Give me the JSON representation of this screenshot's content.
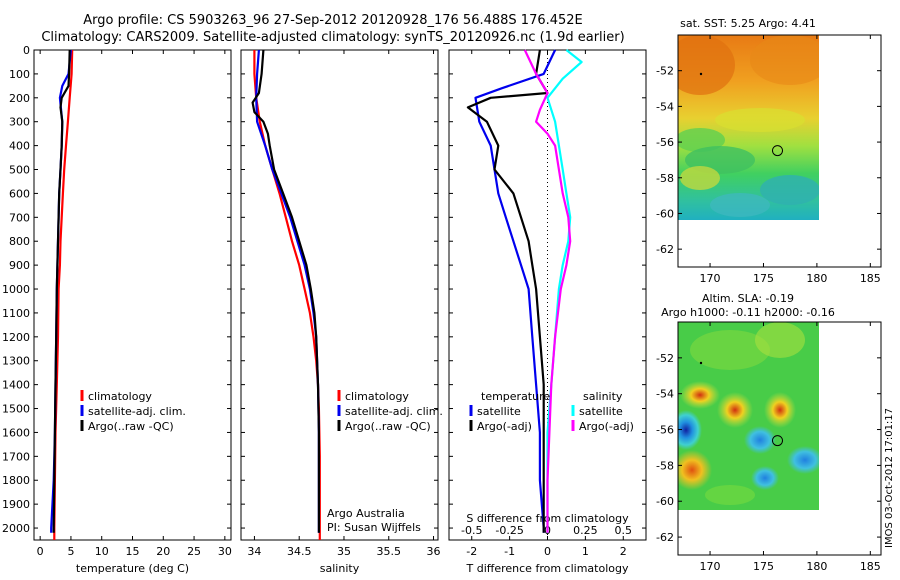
{
  "title_line1": "Argo profile: CS 5903263_96 27-Sep-2012 20120928_176 56.488S 176.452E",
  "title_line2": "Climatology: CARS2009. Satellite-adjusted climatology: synTS_20120926.nc (1.9d earlier)",
  "sidebar_stamp": "IMOS 03-Oct-2012 17:01:17",
  "colors": {
    "clim": "#ff0000",
    "sat": "#0000ee",
    "argo": "#000000",
    "sat_s": "#00ffff",
    "argo_s": "#ff00ff"
  },
  "chart_data": [
    {
      "type": "line",
      "xlabel": "temperature (deg C)",
      "xlim": [
        -1,
        31
      ],
      "ylim": [
        0,
        2050
      ],
      "xticks": [
        0,
        5,
        10,
        15,
        20,
        25,
        30
      ],
      "yticks": [
        0,
        100,
        200,
        300,
        400,
        500,
        600,
        700,
        800,
        900,
        1000,
        1100,
        1200,
        1300,
        1400,
        1500,
        1600,
        1700,
        1800,
        1900,
        2000
      ],
      "legend": [
        "climatology",
        "satellite-adj. clim.",
        "Argo(..raw -QC)"
      ],
      "series": [
        {
          "name": "climatology",
          "color": "clim",
          "points": [
            [
              5.2,
              0
            ],
            [
              5.1,
              100
            ],
            [
              4.8,
              200
            ],
            [
              4.5,
              300
            ],
            [
              4.2,
              400
            ],
            [
              3.9,
              500
            ],
            [
              3.7,
              600
            ],
            [
              3.5,
              700
            ],
            [
              3.3,
              800
            ],
            [
              3.2,
              900
            ],
            [
              3.0,
              1000
            ],
            [
              2.9,
              1200
            ],
            [
              2.7,
              1400
            ],
            [
              2.5,
              1600
            ],
            [
              2.4,
              1800
            ],
            [
              2.3,
              2000
            ],
            [
              2.3,
              2050
            ]
          ]
        },
        {
          "name": "satellite-adj. clim.",
          "color": "sat",
          "points": [
            [
              5.0,
              0
            ],
            [
              4.6,
              100
            ],
            [
              3.6,
              150
            ],
            [
              3.2,
              200
            ],
            [
              3.4,
              250
            ],
            [
              3.6,
              300
            ],
            [
              3.5,
              400
            ],
            [
              3.3,
              500
            ],
            [
              3.1,
              600
            ],
            [
              3.0,
              700
            ],
            [
              2.9,
              800
            ],
            [
              2.8,
              900
            ],
            [
              2.7,
              1000
            ],
            [
              2.6,
              1200
            ],
            [
              2.5,
              1400
            ],
            [
              2.4,
              1600
            ],
            [
              2.2,
              1800
            ],
            [
              1.8,
              2000
            ],
            [
              1.8,
              2020
            ]
          ]
        },
        {
          "name": "Argo(..raw -QC)",
          "color": "argo",
          "points": [
            [
              4.8,
              0
            ],
            [
              4.7,
              100
            ],
            [
              4.6,
              150
            ],
            [
              3.5,
              200
            ],
            [
              3.3,
              240
            ],
            [
              3.6,
              300
            ],
            [
              3.5,
              400
            ],
            [
              3.3,
              500
            ],
            [
              3.1,
              600
            ],
            [
              3.0,
              700
            ],
            [
              2.9,
              800
            ],
            [
              2.8,
              900
            ],
            [
              2.7,
              1000
            ],
            [
              2.6,
              1200
            ],
            [
              2.5,
              1400
            ],
            [
              2.4,
              1600
            ],
            [
              2.3,
              1800
            ],
            [
              2.2,
              2000
            ],
            [
              2.2,
              2020
            ]
          ]
        }
      ]
    },
    {
      "type": "line",
      "xlabel": "salinity",
      "xlim": [
        33.85,
        36.05
      ],
      "ylim": [
        0,
        2050
      ],
      "xticks": [
        34,
        34.5,
        35,
        35.5,
        36
      ],
      "yticks": [
        0,
        100,
        200,
        300,
        400,
        500,
        600,
        700,
        800,
        900,
        1000,
        1100,
        1200,
        1300,
        1400,
        1500,
        1600,
        1700,
        1800,
        1900,
        2000
      ],
      "legend": [
        "climatology",
        "satellite-adj. clim.",
        "Argo(..raw -QC)"
      ],
      "annotations": [
        "Argo Australia",
        "PI: Susan Wijffels"
      ],
      "series": [
        {
          "name": "climatology",
          "color": "clim",
          "points": [
            [
              34.0,
              0
            ],
            [
              34.0,
              100
            ],
            [
              34.02,
              200
            ],
            [
              34.06,
              300
            ],
            [
              34.12,
              400
            ],
            [
              34.2,
              500
            ],
            [
              34.28,
              600
            ],
            [
              34.35,
              700
            ],
            [
              34.42,
              800
            ],
            [
              34.5,
              900
            ],
            [
              34.56,
              1000
            ],
            [
              34.62,
              1100
            ],
            [
              34.66,
              1200
            ],
            [
              34.69,
              1300
            ],
            [
              34.71,
              1400
            ],
            [
              34.72,
              1500
            ],
            [
              34.73,
              1700
            ],
            [
              34.73,
              1900
            ],
            [
              34.73,
              2050
            ]
          ]
        },
        {
          "name": "satellite-adj. clim.",
          "color": "sat",
          "points": [
            [
              34.05,
              0
            ],
            [
              34.03,
              100
            ],
            [
              34.02,
              200
            ],
            [
              34.03,
              300
            ],
            [
              34.12,
              400
            ],
            [
              34.2,
              500
            ],
            [
              34.3,
              600
            ],
            [
              34.4,
              700
            ],
            [
              34.48,
              800
            ],
            [
              34.56,
              900
            ],
            [
              34.62,
              1000
            ],
            [
              34.66,
              1100
            ],
            [
              34.69,
              1200
            ],
            [
              34.7,
              1300
            ],
            [
              34.71,
              1400
            ],
            [
              34.72,
              1600
            ],
            [
              34.72,
              1800
            ],
            [
              34.72,
              2000
            ],
            [
              34.72,
              2020
            ]
          ]
        },
        {
          "name": "Argo(..raw -QC)",
          "color": "argo",
          "points": [
            [
              34.1,
              0
            ],
            [
              34.08,
              100
            ],
            [
              34.05,
              180
            ],
            [
              33.98,
              220
            ],
            [
              34.0,
              260
            ],
            [
              34.1,
              300
            ],
            [
              34.15,
              350
            ],
            [
              34.17,
              400
            ],
            [
              34.22,
              500
            ],
            [
              34.32,
              600
            ],
            [
              34.42,
              700
            ],
            [
              34.5,
              800
            ],
            [
              34.58,
              900
            ],
            [
              34.63,
              1000
            ],
            [
              34.67,
              1100
            ],
            [
              34.69,
              1200
            ],
            [
              34.7,
              1300
            ],
            [
              34.71,
              1400
            ],
            [
              34.72,
              1600
            ],
            [
              34.72,
              1800
            ],
            [
              34.72,
              2000
            ],
            [
              34.72,
              2020
            ]
          ]
        }
      ]
    },
    {
      "type": "line",
      "xlabel": "T difference from climatology",
      "xlabel_top": "S difference from climatology",
      "xlim": [
        -2.6,
        2.6
      ],
      "ylim": [
        0,
        2050
      ],
      "xticks": [
        -2,
        -1,
        0,
        1,
        2
      ],
      "xticks_top": [
        {
          "label": "-0.5",
          "x": -2
        },
        {
          "label": "-0.25",
          "x": -1
        },
        {
          "label": "0",
          "x": 0
        },
        {
          "label": "0.25",
          "x": 1
        },
        {
          "label": "0.5",
          "x": 2
        }
      ],
      "yticks": [
        0,
        100,
        200,
        300,
        400,
        500,
        600,
        700,
        800,
        900,
        1000,
        1100,
        1200,
        1300,
        1400,
        1500,
        1600,
        1700,
        1800,
        1900,
        2000
      ],
      "legend_left_title": "temperature",
      "legend_left": [
        "satellite",
        "Argo(-adj)"
      ],
      "legend_right_title": "salinity",
      "legend_right": [
        "satellite",
        "Argo(-adj)"
      ],
      "series": [
        {
          "name": "satellite",
          "group": "temperature",
          "color": "sat",
          "points": [
            [
              0.2,
              0
            ],
            [
              -0.1,
              100
            ],
            [
              -1.2,
              160
            ],
            [
              -1.9,
              200
            ],
            [
              -1.8,
              300
            ],
            [
              -1.5,
              400
            ],
            [
              -1.4,
              500
            ],
            [
              -1.3,
              600
            ],
            [
              -1.1,
              700
            ],
            [
              -0.9,
              800
            ],
            [
              -0.7,
              900
            ],
            [
              -0.5,
              1000
            ],
            [
              -0.4,
              1200
            ],
            [
              -0.3,
              1400
            ],
            [
              -0.2,
              1600
            ],
            [
              -0.2,
              1800
            ],
            [
              -0.1,
              2000
            ],
            [
              -0.1,
              2020
            ]
          ]
        },
        {
          "name": "Argo(-adj)",
          "group": "temperature",
          "color": "argo",
          "points": [
            [
              -0.2,
              0
            ],
            [
              -0.3,
              100
            ],
            [
              0.0,
              180
            ],
            [
              -1.5,
              200
            ],
            [
              -2.1,
              240
            ],
            [
              -1.6,
              300
            ],
            [
              -1.3,
              400
            ],
            [
              -1.4,
              500
            ],
            [
              -0.9,
              600
            ],
            [
              -0.7,
              700
            ],
            [
              -0.5,
              800
            ],
            [
              -0.4,
              900
            ],
            [
              -0.3,
              1000
            ],
            [
              -0.2,
              1200
            ],
            [
              -0.1,
              1400
            ],
            [
              -0.1,
              1600
            ],
            [
              -0.1,
              1800
            ],
            [
              -0.1,
              2000
            ],
            [
              -0.1,
              2020
            ]
          ]
        },
        {
          "name": "satellite",
          "group": "salinity",
          "color": "sat_s",
          "points": [
            [
              0.5,
              0
            ],
            [
              0.9,
              50
            ],
            [
              0.4,
              120
            ],
            [
              0.0,
              200
            ],
            [
              0.2,
              300
            ],
            [
              0.3,
              400
            ],
            [
              0.4,
              500
            ],
            [
              0.5,
              600
            ],
            [
              0.6,
              700
            ],
            [
              0.55,
              800
            ],
            [
              0.4,
              900
            ],
            [
              0.3,
              1000
            ],
            [
              0.2,
              1200
            ],
            [
              0.1,
              1400
            ],
            [
              0.0,
              1600
            ],
            [
              0.0,
              1800
            ],
            [
              0.0,
              2000
            ],
            [
              0.0,
              2020
            ]
          ]
        },
        {
          "name": "Argo(-adj)",
          "group": "salinity",
          "color": "argo_s",
          "points": [
            [
              -0.6,
              0
            ],
            [
              -0.3,
              100
            ],
            [
              0.0,
              180
            ],
            [
              -0.2,
              250
            ],
            [
              -0.3,
              300
            ],
            [
              0.0,
              350
            ],
            [
              0.2,
              400
            ],
            [
              0.3,
              500
            ],
            [
              0.4,
              600
            ],
            [
              0.55,
              700
            ],
            [
              0.6,
              800
            ],
            [
              0.5,
              900
            ],
            [
              0.35,
              1000
            ],
            [
              0.2,
              1200
            ],
            [
              0.1,
              1400
            ],
            [
              0.05,
              1600
            ],
            [
              0.0,
              1800
            ],
            [
              0.0,
              2000
            ],
            [
              0.0,
              2020
            ]
          ]
        }
      ]
    },
    {
      "type": "heatmap",
      "title": "sat. SST: 5.25  Argo: 4.41",
      "xlim": [
        167,
        186
      ],
      "ylim": [
        -63,
        -50
      ],
      "xticks": [
        170,
        175,
        180,
        185
      ],
      "yticks": [
        -52,
        -54,
        -56,
        -58,
        -60,
        -62
      ],
      "marker": [
        176.45,
        -56.49
      ]
    },
    {
      "type": "heatmap",
      "title": "Altim. SLA: -0.19",
      "subtitle": "Argo h1000: -0.11  h2000: -0.16",
      "xlim": [
        167,
        186
      ],
      "ylim": [
        -63,
        -50
      ],
      "xticks": [
        170,
        175,
        180,
        185
      ],
      "yticks": [
        -52,
        -54,
        -56,
        -58,
        -60,
        -62
      ],
      "marker": [
        176.45,
        -56.49
      ]
    }
  ]
}
